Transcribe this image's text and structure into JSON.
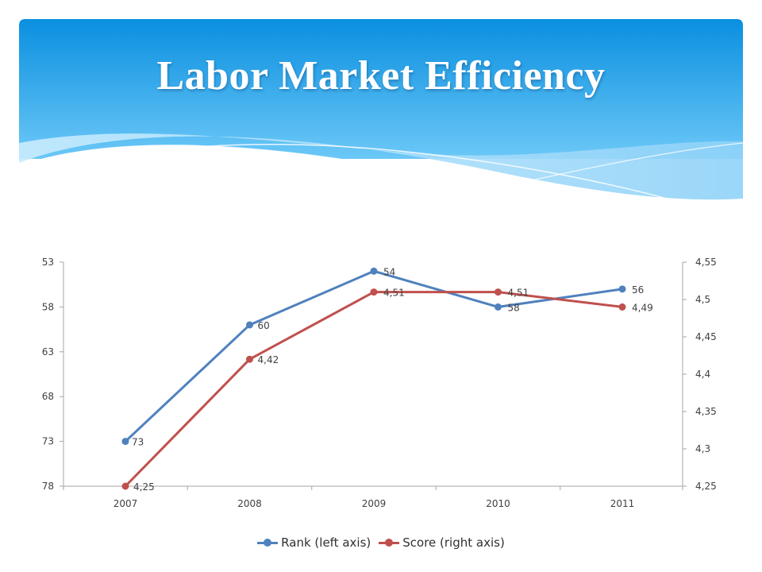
{
  "slide": {
    "title": "Labor Market Efficiency"
  },
  "colors": {
    "header_top": "#0a8fe0",
    "header_bottom": "#6cc8f7",
    "wave_light": "#a9ddfa",
    "rank_series": "#4f81bd",
    "score_series": "#c0504d",
    "axis": "#a6a6a6"
  },
  "chart_data": {
    "type": "line",
    "title": "",
    "categories": [
      "2007",
      "2008",
      "2009",
      "2010",
      "2011"
    ],
    "series": [
      {
        "name": "Rank (left axis)",
        "axis": "left",
        "values": [
          73,
          60,
          54,
          58,
          56
        ],
        "labels": [
          "73",
          "60",
          "54",
          "58",
          "56"
        ]
      },
      {
        "name": "Score (right axis)",
        "axis": "right",
        "values": [
          4.25,
          4.42,
          4.51,
          4.51,
          4.49
        ],
        "labels": [
          "4,25",
          "4,42",
          "4,51",
          "4,51",
          "4,49"
        ]
      }
    ],
    "left_axis": {
      "min": 53,
      "max": 78,
      "reversed": true,
      "ticks": [
        53,
        58,
        63,
        68,
        73,
        78
      ],
      "tick_labels": [
        "53",
        "58",
        "63",
        "68",
        "73",
        "78"
      ]
    },
    "right_axis": {
      "min": 4.25,
      "max": 4.55,
      "ticks": [
        4.55,
        4.5,
        4.45,
        4.4,
        4.35,
        4.3,
        4.25
      ],
      "tick_labels": [
        "4,55",
        "4,5",
        "4,45",
        "4,4",
        "4,35",
        "4,3",
        "4,25"
      ]
    },
    "grid": false,
    "legend_position": "bottom",
    "legend": [
      "Rank (left axis)",
      "Score (right axis)"
    ]
  }
}
